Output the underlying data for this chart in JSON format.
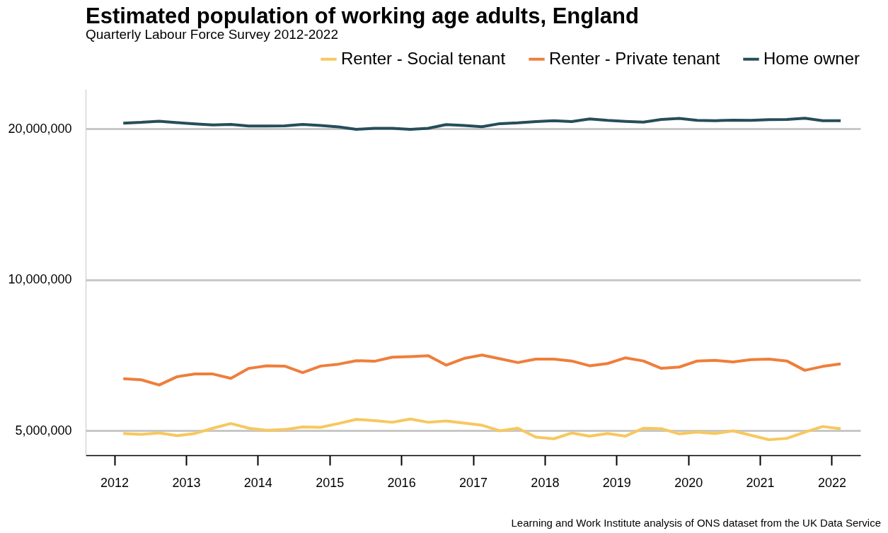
{
  "chart_data": {
    "type": "line",
    "title": "Estimated population of working age adults, England",
    "subtitle": "Quarterly Labour Force Survey 2012-2022",
    "annotations": [
      "Learning and Work Institute analysis of ONS dataset from the UK Data Service"
    ],
    "x": [
      2012.125,
      2012.375,
      2012.625,
      2012.875,
      2013.125,
      2013.375,
      2013.625,
      2013.875,
      2014.125,
      2014.375,
      2014.625,
      2014.875,
      2015.125,
      2015.375,
      2015.625,
      2015.875,
      2016.125,
      2016.375,
      2016.625,
      2016.875,
      2017.125,
      2017.375,
      2017.625,
      2017.875,
      2018.125,
      2018.375,
      2018.625,
      2018.875,
      2019.125,
      2019.375,
      2019.625,
      2019.875,
      2020.125,
      2020.375,
      2020.625,
      2020.875,
      2021.125,
      2021.375,
      2021.625,
      2021.875,
      2022.125
    ],
    "series": [
      {
        "name": "Renter - Social tenant",
        "color": "#f6c85f",
        "values": [
          4940000,
          4920000,
          4950000,
          4890000,
          4940000,
          5060000,
          5170000,
          5060000,
          5010000,
          5030000,
          5090000,
          5080000,
          5170000,
          5270000,
          5240000,
          5200000,
          5280000,
          5200000,
          5230000,
          5180000,
          5130000,
          5000000,
          5060000,
          4860000,
          4820000,
          4950000,
          4880000,
          4940000,
          4880000,
          5060000,
          5050000,
          4930000,
          4970000,
          4940000,
          5000000,
          4900000,
          4800000,
          4830000,
          4970000,
          5100000,
          5050000
        ]
      },
      {
        "name": "Renter - Private tenant",
        "color": "#ef7e3b",
        "values": [
          6350000,
          6320000,
          6170000,
          6410000,
          6490000,
          6490000,
          6360000,
          6660000,
          6740000,
          6730000,
          6530000,
          6730000,
          6790000,
          6900000,
          6880000,
          7010000,
          7030000,
          7060000,
          6760000,
          6970000,
          7080000,
          6960000,
          6840000,
          6950000,
          6950000,
          6890000,
          6740000,
          6810000,
          6990000,
          6890000,
          6660000,
          6700000,
          6890000,
          6910000,
          6860000,
          6930000,
          6950000,
          6890000,
          6600000,
          6720000,
          6800000
        ]
      },
      {
        "name": "Home owner",
        "color": "#264d5a",
        "values": [
          20530000,
          20600000,
          20710000,
          20580000,
          20460000,
          20360000,
          20410000,
          20250000,
          20250000,
          20270000,
          20410000,
          20300000,
          20180000,
          19950000,
          20050000,
          20050000,
          19950000,
          20050000,
          20390000,
          20300000,
          20190000,
          20480000,
          20550000,
          20670000,
          20760000,
          20670000,
          20930000,
          20790000,
          20690000,
          20620000,
          20880000,
          20980000,
          20790000,
          20760000,
          20810000,
          20790000,
          20860000,
          20880000,
          21000000,
          20760000,
          20760000
        ]
      }
    ],
    "xlim": [
      2011.6,
      2022.4
    ],
    "xticks": [
      2012,
      2013,
      2014,
      2015,
      2016,
      2017,
      2018,
      2019,
      2020,
      2021,
      2022
    ],
    "ylim": [
      4470000,
      24000000
    ],
    "yticks": [
      {
        "value": 5000000,
        "label": "5,000,000"
      },
      {
        "value": 10000000,
        "label": "10,000,000"
      },
      {
        "value": 20000000,
        "label": "20,000,000"
      }
    ],
    "log": true,
    "grid": "y",
    "legend": "top"
  }
}
